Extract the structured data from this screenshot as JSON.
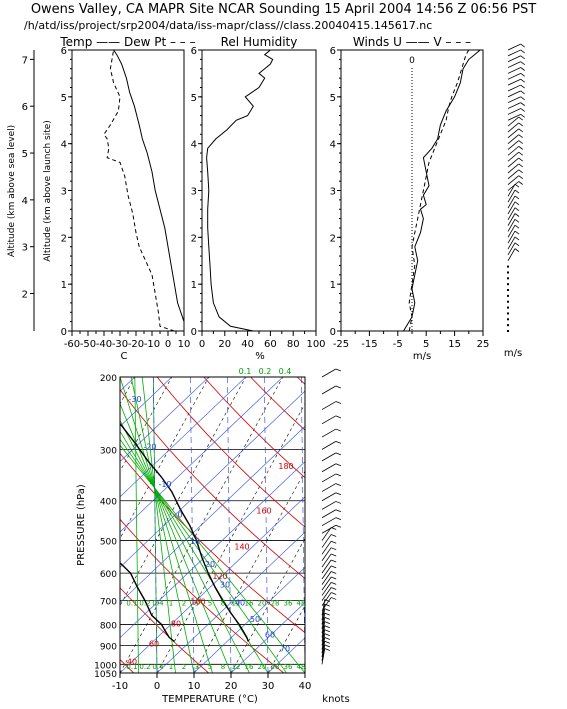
{
  "header": {
    "title": "Owens Valley, CA MAPR Site NCAR Sounding 15 April 2004 14:56 Z 06:56 PST",
    "subtitle": "/h/atd/iss/project/srp2004/data/iss-mapr/class//class.20040415.145617.nc"
  },
  "chart_data": [
    {
      "type": "line",
      "id": "temp-dewpoint",
      "title": "Temp —— Dew Pt – – –",
      "xlabel": "C",
      "ylabel_outer": "Altitude (km above sea level)",
      "ylabel_inner": "Altitude (km above launch site)",
      "xlim": [
        -60,
        10
      ],
      "ylim": [
        0,
        6
      ],
      "x_ticks": [
        "-60",
        "-50",
        "-40",
        "-30",
        "-20",
        "-10",
        "0",
        "10"
      ],
      "y_ticks": [
        "0",
        "1",
        "2",
        "3",
        "4",
        "5",
        "6"
      ],
      "y_outer_ticks": [
        "2",
        "3",
        "4",
        "5",
        "6",
        "7"
      ],
      "series": [
        {
          "name": "Temp",
          "style": "solid",
          "x": [
            10,
            10,
            6,
            4,
            2,
            0,
            -2,
            -5,
            -8,
            -10,
            -13,
            -16,
            -18,
            -21,
            -24,
            -26,
            -29,
            -32,
            -34
          ],
          "y": [
            0,
            0.2,
            0.6,
            1.0,
            1.4,
            1.8,
            2.2,
            2.6,
            3.0,
            3.4,
            3.8,
            4.1,
            4.4,
            4.8,
            5.1,
            5.4,
            5.7,
            5.9,
            6.0
          ]
        },
        {
          "name": "Dew Pt",
          "style": "dashed",
          "x": [
            4,
            -5,
            -6,
            -8,
            -10,
            -14,
            -18,
            -20,
            -22,
            -25,
            -27,
            -30,
            -38,
            -37,
            -38,
            -40,
            -36,
            -31,
            -30,
            -34,
            -36,
            -34
          ],
          "y": [
            0,
            0.1,
            0.4,
            0.8,
            1.2,
            1.5,
            1.8,
            2.1,
            2.5,
            2.9,
            3.3,
            3.6,
            3.7,
            3.9,
            4.1,
            4.2,
            4.4,
            4.7,
            5.0,
            5.3,
            5.6,
            6.0
          ]
        }
      ]
    },
    {
      "type": "line",
      "id": "rel-humidity",
      "title": "Rel Humidity",
      "xlabel": "%",
      "xlim": [
        0,
        100
      ],
      "ylim": [
        0,
        6
      ],
      "x_ticks": [
        "0",
        "20",
        "40",
        "60",
        "80",
        "100"
      ],
      "y_ticks": [
        "0",
        "1",
        "2",
        "3",
        "4",
        "5",
        "6"
      ],
      "series": [
        {
          "name": "Rel Humidity",
          "style": "solid",
          "x": [
            45,
            25,
            15,
            10,
            8,
            7,
            6,
            5,
            5,
            6,
            5,
            4,
            5,
            12,
            22,
            30,
            40,
            45,
            38,
            50,
            55,
            50,
            55,
            60,
            62,
            55,
            60
          ],
          "y": [
            0,
            0.1,
            0.3,
            0.6,
            1.0,
            1.4,
            1.8,
            2.2,
            2.6,
            3.0,
            3.4,
            3.7,
            3.9,
            4.1,
            4.3,
            4.5,
            4.6,
            4.8,
            5.0,
            5.2,
            5.4,
            5.5,
            5.6,
            5.7,
            5.8,
            5.9,
            6.0
          ]
        }
      ]
    },
    {
      "type": "line",
      "id": "winds",
      "title": "Winds U —— V – – –",
      "xlabel": "m/s",
      "xlim": [
        -25,
        25
      ],
      "ylim": [
        0,
        6
      ],
      "x_ticks": [
        "-25",
        "-15",
        "-5",
        "5",
        "15",
        "25"
      ],
      "y_ticks": [
        "0",
        "1",
        "2",
        "3",
        "4",
        "5",
        "6"
      ],
      "zero_label": "0",
      "barb_unit": "m/s",
      "series": [
        {
          "name": "U",
          "style": "solid",
          "x": [
            -3,
            0,
            1,
            0,
            1,
            2,
            1,
            3,
            4,
            3,
            5,
            4,
            6,
            5,
            4,
            7,
            9,
            10,
            12,
            15,
            17,
            18,
            20,
            22,
            24
          ],
          "y": [
            0,
            0.3,
            0.6,
            0.9,
            1.2,
            1.5,
            1.8,
            2.1,
            2.4,
            2.6,
            2.7,
            2.9,
            3.1,
            3.4,
            3.7,
            3.9,
            4.1,
            4.4,
            4.7,
            5.0,
            5.3,
            5.6,
            5.8,
            5.9,
            6.0
          ]
        },
        {
          "name": "V",
          "style": "dashed",
          "x": [
            -1,
            0,
            -1,
            0,
            1,
            0,
            1,
            2,
            3,
            4,
            5,
            6,
            8,
            10,
            12,
            13,
            14,
            16,
            17,
            18,
            19,
            20
          ],
          "y": [
            0,
            0.3,
            0.6,
            1.0,
            1.4,
            1.8,
            2.1,
            2.4,
            2.7,
            3.0,
            3.3,
            3.6,
            3.9,
            4.2,
            4.5,
            4.8,
            5.0,
            5.3,
            5.5,
            5.7,
            5.9,
            6.0
          ]
        }
      ]
    },
    {
      "type": "skew-t",
      "id": "skewt",
      "ylabel": "PRESSURE (hPa)",
      "xlabel": "TEMPERATURE (°C)",
      "barb_unit": "knots",
      "xlim": [
        -10,
        40
      ],
      "plim": [
        1050,
        200
      ],
      "x_ticks": [
        "-10",
        "0",
        "10",
        "20",
        "30",
        "40"
      ],
      "p_ticks": [
        "200",
        "300",
        "400",
        "500",
        "600",
        "700",
        "800",
        "900",
        "1000",
        "1050"
      ],
      "mixing_ratio_top_labels": [
        "0.1",
        "0.2",
        "0.4"
      ],
      "mixing_ratio_row_labels": [
        "0.1",
        "0.2",
        "0.4",
        "1",
        "2",
        "3",
        "5",
        "8",
        "12",
        "16",
        "20",
        "28",
        "36",
        "48"
      ],
      "blue_labels": [
        "-30",
        "-20",
        "-10",
        "0",
        "10",
        "20",
        "30",
        "40",
        "50",
        "60",
        "70"
      ],
      "red_labels": [
        "40",
        "60",
        "80",
        "100",
        "120",
        "140",
        "160",
        "180"
      ],
      "series": [
        {
          "name": "Temperature",
          "style": "solid",
          "x": [
            20,
            19,
            15,
            11,
            7,
            3,
            -1,
            -5,
            -9,
            -13,
            -18,
            -23,
            -28,
            -34,
            -40,
            -47,
            -53
          ],
          "p": [
            880,
            860,
            800,
            750,
            700,
            650,
            600,
            550,
            500,
            460,
            420,
            380,
            350,
            320,
            290,
            260,
            230
          ]
        },
        {
          "name": "Dewpoint",
          "style": "solid",
          "x": [
            0,
            -2,
            -4,
            -6,
            -10,
            -14,
            -18,
            -22,
            -30,
            -33,
            -35,
            -32,
            -36,
            -38,
            -40,
            -44,
            -48,
            -52,
            -56
          ],
          "p": [
            880,
            860,
            830,
            800,
            760,
            700,
            650,
            600,
            540,
            520,
            500,
            470,
            440,
            400,
            360,
            320,
            290,
            260,
            230
          ]
        }
      ]
    }
  ]
}
